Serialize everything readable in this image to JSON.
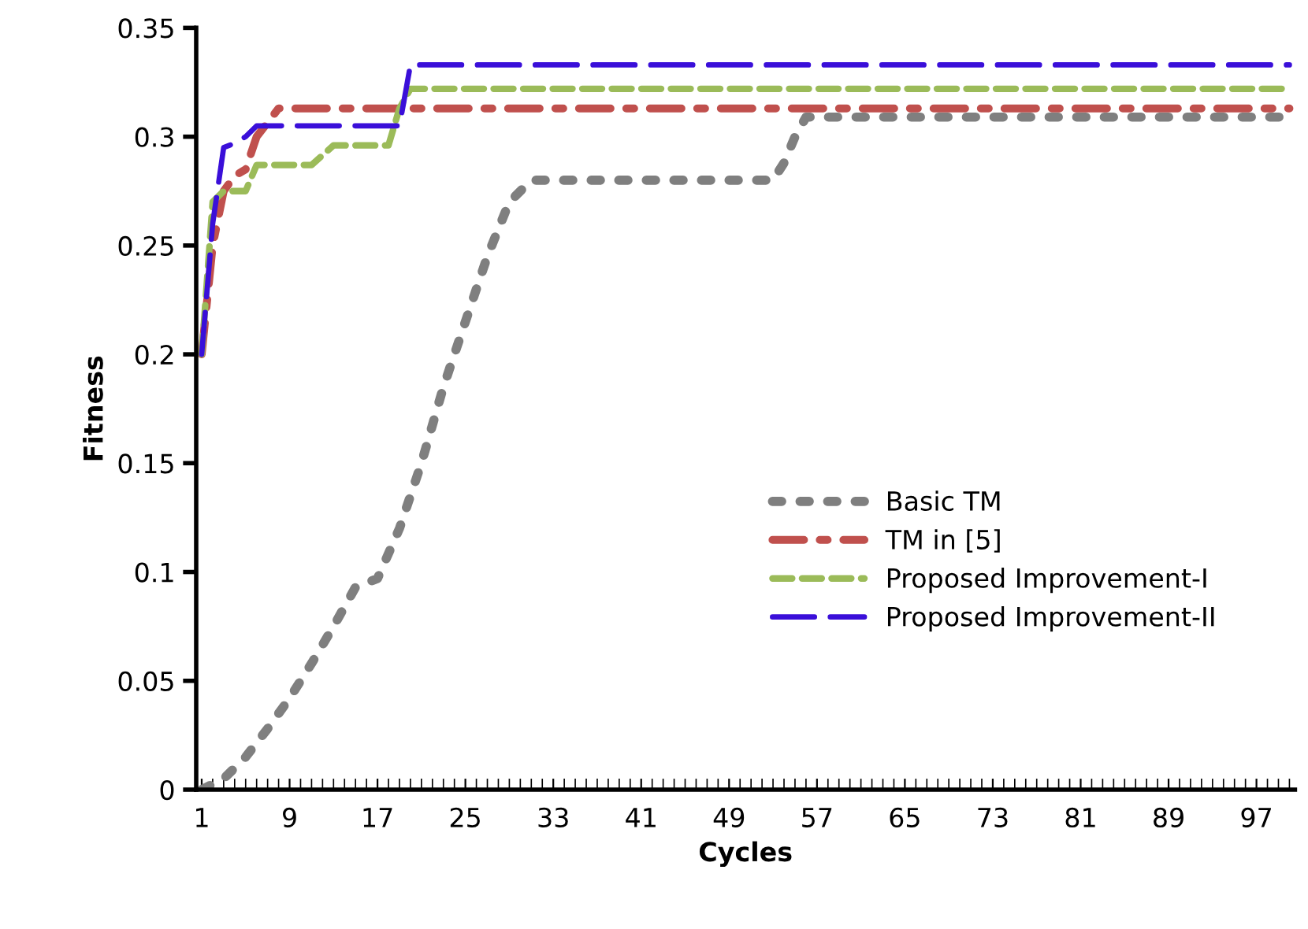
{
  "chart_data": {
    "type": "line",
    "xlabel": "Cycles",
    "ylabel": "Fitness",
    "xlim": [
      0.5,
      100.5
    ],
    "xticks": [
      1,
      9,
      17,
      25,
      33,
      41,
      49,
      57,
      65,
      73,
      81,
      89,
      97
    ],
    "ylim": [
      0,
      0.35
    ],
    "yticks": [
      0,
      0.05,
      0.1,
      0.15,
      0.2,
      0.25,
      0.3,
      0.35
    ],
    "grid": false,
    "legend": "right",
    "marker": "none",
    "series": [
      {
        "name": "Basic TM",
        "color": "#7f7f7f",
        "line_style": "dotted",
        "x": [
          1,
          3,
          5,
          7,
          9,
          11,
          13,
          15,
          17,
          19,
          21,
          23,
          25,
          27,
          29,
          31,
          53,
          54,
          55,
          56,
          100
        ],
        "values": [
          0,
          0.005,
          0.015,
          0.028,
          0.042,
          0.058,
          0.075,
          0.093,
          0.097,
          0.12,
          0.15,
          0.185,
          0.215,
          0.245,
          0.27,
          0.28,
          0.28,
          0.288,
          0.3,
          0.309,
          0.309
        ]
      },
      {
        "name": "TM in [5]",
        "color": "#c0504d",
        "line_style": "dashdot",
        "x": [
          1,
          2,
          3,
          4,
          5,
          6,
          8,
          100
        ],
        "values": [
          0.2,
          0.25,
          0.275,
          0.282,
          0.285,
          0.3,
          0.313,
          0.313
        ]
      },
      {
        "name": "Proposed Improvement-I",
        "color": "#9bbb59",
        "line_style": "dashed",
        "x": [
          1,
          2,
          3,
          5,
          6,
          11,
          13,
          18,
          19,
          20,
          100
        ],
        "values": [
          0.2,
          0.27,
          0.275,
          0.275,
          0.287,
          0.287,
          0.296,
          0.296,
          0.313,
          0.322,
          0.322
        ]
      },
      {
        "name": "Proposed Improvement-II",
        "color": "#3a0fd9",
        "line_style": "longdash",
        "x": [
          1,
          2,
          3,
          4,
          5,
          6,
          19,
          20,
          100
        ],
        "values": [
          0.2,
          0.26,
          0.295,
          0.297,
          0.3,
          0.305,
          0.305,
          0.333,
          0.333
        ]
      }
    ]
  }
}
